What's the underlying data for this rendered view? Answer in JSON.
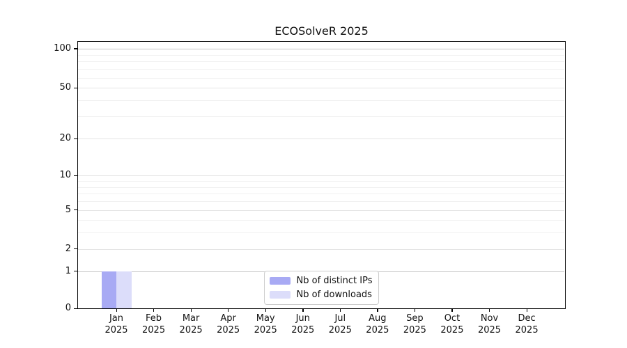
{
  "title": "ECOSolveR 2025",
  "chart_data": {
    "type": "bar",
    "title": "ECOSolveR 2025",
    "categories": [
      "Jan",
      "Feb",
      "Mar",
      "Apr",
      "May",
      "Jun",
      "Jul",
      "Aug",
      "Sep",
      "Oct",
      "Nov",
      "Dec"
    ],
    "category_year": "2025",
    "series": [
      {
        "name": "Nb of distinct IPs",
        "color": "#a8aaf4",
        "values": [
          1,
          0,
          0,
          0,
          0,
          0,
          0,
          0,
          0,
          0,
          0,
          0
        ]
      },
      {
        "name": "Nb of downloads",
        "color": "#dcddfa",
        "values": [
          1,
          0,
          0,
          0,
          0,
          0,
          0,
          0,
          0,
          0,
          0,
          0
        ]
      }
    ],
    "xlabel": "",
    "ylabel": "",
    "ylim": [
      0,
      113
    ],
    "yticks_major": [
      0,
      1,
      2,
      5,
      10,
      20,
      50,
      100
    ],
    "yticks_minor": [
      3,
      4,
      6,
      7,
      8,
      9,
      30,
      40,
      60,
      70,
      80,
      90
    ],
    "yscale": {
      "type": "log1p",
      "c": 1.1
    },
    "grid": "horizontal major+minor",
    "grid_colors": {
      "emphasized": "#c5c5c5",
      "major": "#e4e4e4",
      "minor": "#f1f1f1",
      "emphasized_values": [
        1,
        100
      ]
    },
    "legend_position": "lower center",
    "axis_color": "#000000",
    "text_color": "#111111"
  }
}
